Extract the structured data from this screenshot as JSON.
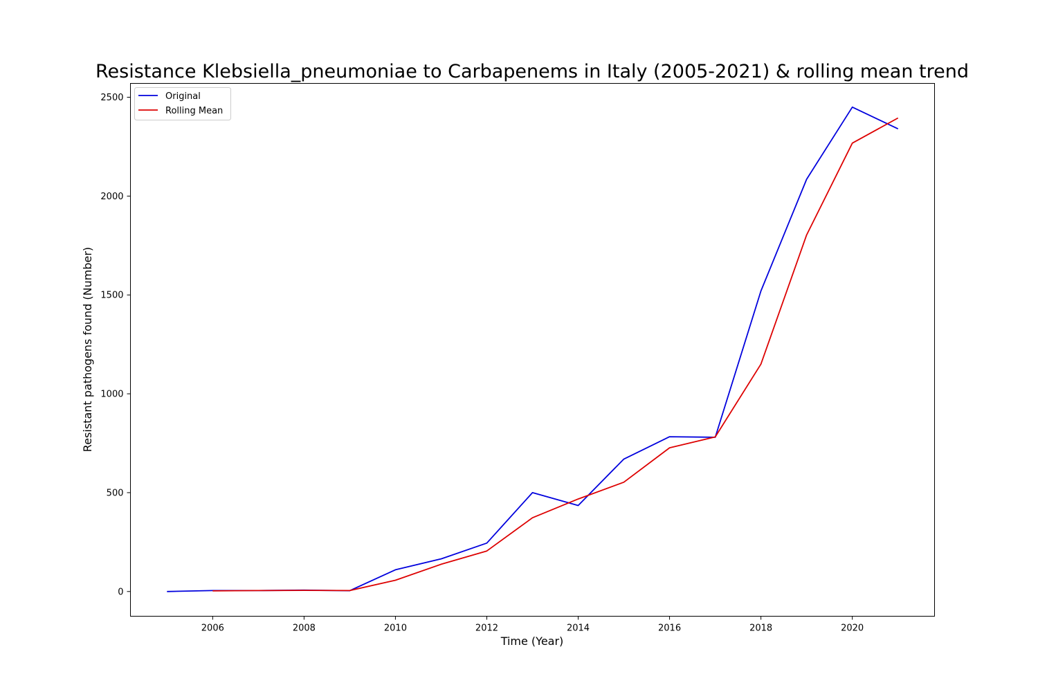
{
  "chart_data": {
    "type": "line",
    "title": "Resistance Klebsiella_pneumoniae to Carbapenems in Italy (2005-2021) & rolling mean trend",
    "xlabel": "Time (Year)",
    "ylabel": "Resistant pathogens found (Number)",
    "xlim": [
      2004.2,
      2021.8
    ],
    "ylim": [
      -125,
      2570
    ],
    "xticks": [
      2006,
      2008,
      2010,
      2012,
      2014,
      2016,
      2018,
      2020
    ],
    "yticks": [
      0,
      500,
      1000,
      1500,
      2000,
      2500
    ],
    "grid": false,
    "legend_position": "top-left",
    "series": [
      {
        "name": "Original",
        "color": "#0000dd",
        "x": [
          2005,
          2006,
          2007,
          2008,
          2009,
          2010,
          2011,
          2012,
          2013,
          2014,
          2015,
          2016,
          2017,
          2018,
          2019,
          2020,
          2021
        ],
        "values": [
          0,
          5,
          5,
          7,
          4,
          110,
          165,
          245,
          500,
          435,
          670,
          783,
          780,
          1520,
          2085,
          2450,
          2340
        ]
      },
      {
        "name": "Rolling Mean",
        "color": "#dd0000",
        "x": [
          2006,
          2007,
          2008,
          2009,
          2010,
          2011,
          2012,
          2013,
          2014,
          2015,
          2016,
          2017,
          2018,
          2019,
          2020,
          2021
        ],
        "values": [
          3,
          5,
          6,
          5,
          57,
          138,
          205,
          373,
          468,
          553,
          727,
          782,
          1150,
          1803,
          2268,
          2395
        ]
      }
    ]
  }
}
